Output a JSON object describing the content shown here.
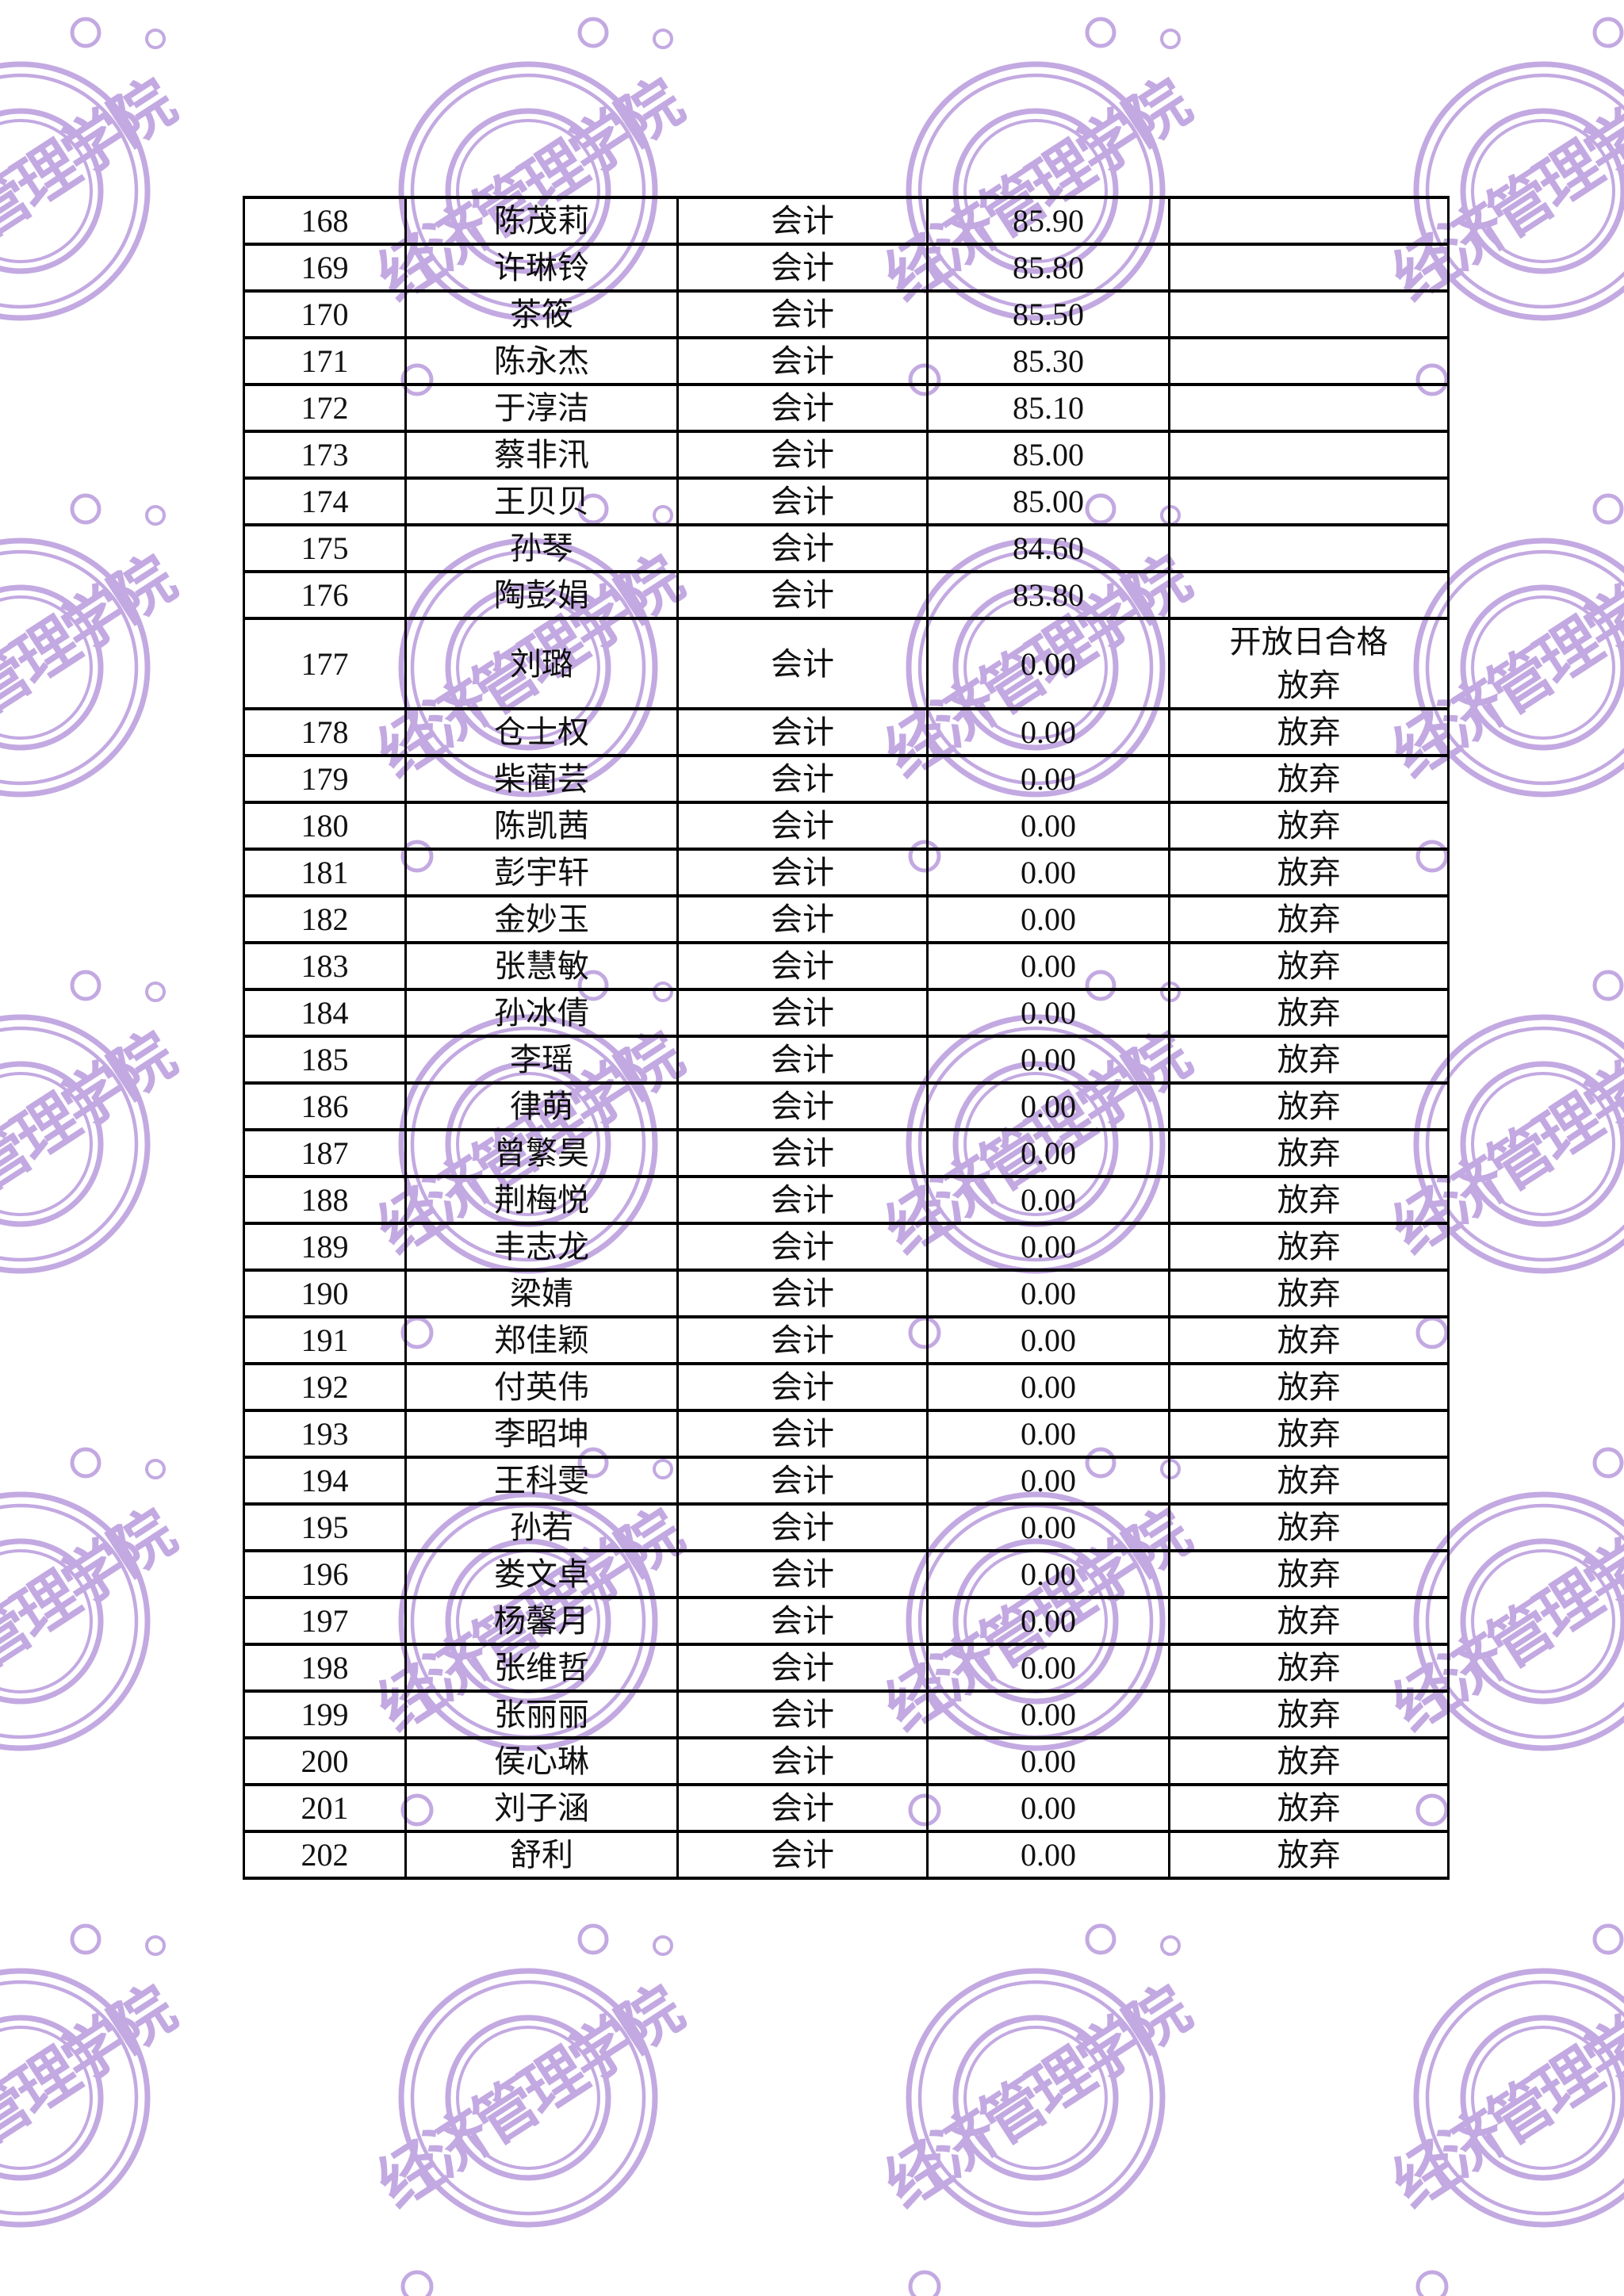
{
  "watermark": {
    "text": "经济管理学院",
    "color": "#c3a9e1"
  },
  "table": {
    "rows": [
      {
        "no": "168",
        "name": "陈茂莉",
        "major": "会计",
        "score": "85.90",
        "remark": []
      },
      {
        "no": "169",
        "name": "许琳铃",
        "major": "会计",
        "score": "85.80",
        "remark": []
      },
      {
        "no": "170",
        "name": "茶筱",
        "major": "会计",
        "score": "85.50",
        "remark": []
      },
      {
        "no": "171",
        "name": "陈永杰",
        "major": "会计",
        "score": "85.30",
        "remark": []
      },
      {
        "no": "172",
        "name": "于淳洁",
        "major": "会计",
        "score": "85.10",
        "remark": []
      },
      {
        "no": "173",
        "name": "蔡非汛",
        "major": "会计",
        "score": "85.00",
        "remark": []
      },
      {
        "no": "174",
        "name": "王贝贝",
        "major": "会计",
        "score": "85.00",
        "remark": []
      },
      {
        "no": "175",
        "name": "孙琴",
        "major": "会计",
        "score": "84.60",
        "remark": []
      },
      {
        "no": "176",
        "name": "陶彭娟",
        "major": "会计",
        "score": "83.80",
        "remark": []
      },
      {
        "no": "177",
        "name": "刘璐",
        "major": "会计",
        "score": "0.00",
        "remark": [
          "开放日合格",
          "放弃"
        ]
      },
      {
        "no": "178",
        "name": "仓士权",
        "major": "会计",
        "score": "0.00",
        "remark": [
          "放弃"
        ]
      },
      {
        "no": "179",
        "name": "柴蔺芸",
        "major": "会计",
        "score": "0.00",
        "remark": [
          "放弃"
        ]
      },
      {
        "no": "180",
        "name": "陈凯茜",
        "major": "会计",
        "score": "0.00",
        "remark": [
          "放弃"
        ]
      },
      {
        "no": "181",
        "name": "彭宇轩",
        "major": "会计",
        "score": "0.00",
        "remark": [
          "放弃"
        ]
      },
      {
        "no": "182",
        "name": "金妙玉",
        "major": "会计",
        "score": "0.00",
        "remark": [
          "放弃"
        ]
      },
      {
        "no": "183",
        "name": "张慧敏",
        "major": "会计",
        "score": "0.00",
        "remark": [
          "放弃"
        ]
      },
      {
        "no": "184",
        "name": "孙冰倩",
        "major": "会计",
        "score": "0.00",
        "remark": [
          "放弃"
        ]
      },
      {
        "no": "185",
        "name": "李瑶",
        "major": "会计",
        "score": "0.00",
        "remark": [
          "放弃"
        ]
      },
      {
        "no": "186",
        "name": "律萌",
        "major": "会计",
        "score": "0.00",
        "remark": [
          "放弃"
        ]
      },
      {
        "no": "187",
        "name": "曾繁昊",
        "major": "会计",
        "score": "0.00",
        "remark": [
          "放弃"
        ]
      },
      {
        "no": "188",
        "name": "荆梅悦",
        "major": "会计",
        "score": "0.00",
        "remark": [
          "放弃"
        ]
      },
      {
        "no": "189",
        "name": "丰志龙",
        "major": "会计",
        "score": "0.00",
        "remark": [
          "放弃"
        ]
      },
      {
        "no": "190",
        "name": "梁婧",
        "major": "会计",
        "score": "0.00",
        "remark": [
          "放弃"
        ]
      },
      {
        "no": "191",
        "name": "郑佳颖",
        "major": "会计",
        "score": "0.00",
        "remark": [
          "放弃"
        ]
      },
      {
        "no": "192",
        "name": "付英伟",
        "major": "会计",
        "score": "0.00",
        "remark": [
          "放弃"
        ]
      },
      {
        "no": "193",
        "name": "李昭坤",
        "major": "会计",
        "score": "0.00",
        "remark": [
          "放弃"
        ]
      },
      {
        "no": "194",
        "name": "王科雯",
        "major": "会计",
        "score": "0.00",
        "remark": [
          "放弃"
        ]
      },
      {
        "no": "195",
        "name": "孙若",
        "major": "会计",
        "score": "0.00",
        "remark": [
          "放弃"
        ]
      },
      {
        "no": "196",
        "name": "娄文卓",
        "major": "会计",
        "score": "0.00",
        "remark": [
          "放弃"
        ]
      },
      {
        "no": "197",
        "name": "杨馨月",
        "major": "会计",
        "score": "0.00",
        "remark": [
          "放弃"
        ]
      },
      {
        "no": "198",
        "name": "张维哲",
        "major": "会计",
        "score": "0.00",
        "remark": [
          "放弃"
        ]
      },
      {
        "no": "199",
        "name": "张丽丽",
        "major": "会计",
        "score": "0.00",
        "remark": [
          "放弃"
        ]
      },
      {
        "no": "200",
        "name": "侯心琳",
        "major": "会计",
        "score": "0.00",
        "remark": [
          "放弃"
        ]
      },
      {
        "no": "201",
        "name": "刘子涵",
        "major": "会计",
        "score": "0.00",
        "remark": [
          "放弃"
        ]
      },
      {
        "no": "202",
        "name": "舒利",
        "major": "会计",
        "score": "0.00",
        "remark": [
          "放弃"
        ]
      }
    ]
  }
}
